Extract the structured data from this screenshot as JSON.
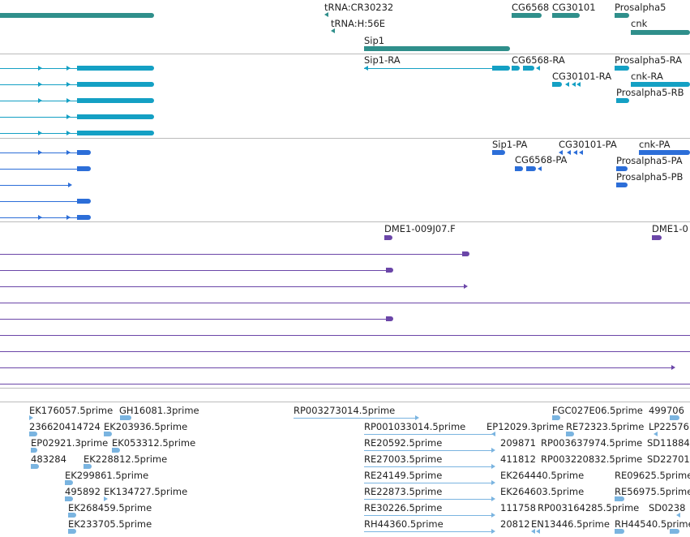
{
  "colors": {
    "gene": "#2f8f8b",
    "transcript": "#14a0c4",
    "protein": "#2c6ed8",
    "cdna": "#6b46a8",
    "est": "#7ab4e0",
    "separator": "#bbbbbb"
  },
  "tracks": {
    "genes": {
      "labels": [
        "tRNA:CR30232",
        "tRNA:H:56E",
        "Sip1",
        "CG6568",
        "CG30101",
        "Prosalpha5",
        "cnk"
      ]
    },
    "transcripts": {
      "labels": [
        "Sip1-RA",
        "CG6568-RA",
        "CG30101-RA",
        "Prosalpha5-RA",
        "cnk-RA",
        "Prosalpha5-RB"
      ]
    },
    "proteins": {
      "labels": [
        "Sip1-PA",
        "CG30101-PA",
        "cnk-PA",
        "CG6568-PA",
        "Prosalpha5-PA",
        "Prosalpha5-PB"
      ]
    },
    "cdna": {
      "labels": [
        "DME1-009J07.F",
        "DME1-0"
      ]
    },
    "ests": {
      "labels": [
        "EK176057.5prime",
        "GH16081.3prime",
        "RP003273014.5prime",
        "FGC027E06.5prime",
        "499706",
        "236620414724",
        "EK203936.5prime",
        "RP001033014.5prime",
        "EP12029.3prime",
        "RE72323.5prime",
        "LP22576",
        "EP02921.3prime",
        "EK053312.5prime",
        "RE20592.5prime",
        "209871",
        "RP003637974.5prime",
        "SD11884",
        "483284",
        "EK228812.5prime",
        "RE27003.5prime",
        "411812",
        "RP003220832.5prime",
        "SD22701",
        "EK299861.5prime",
        "RE24149.5prime",
        "EK264440.5prime",
        "RE09625.5prime",
        "495892",
        "EK134727.5prime",
        "RE22873.5prime",
        "EK264603.5prime",
        "RE56975.5prime",
        "EK268459.5prime",
        "RE30226.5prime",
        "111758",
        "RP003164285.5prime",
        "SD0238",
        "EK233705.5prime",
        "RH44360.5prime",
        "20812",
        "EN13446.5prime",
        "RH44540.5prime"
      ]
    }
  }
}
